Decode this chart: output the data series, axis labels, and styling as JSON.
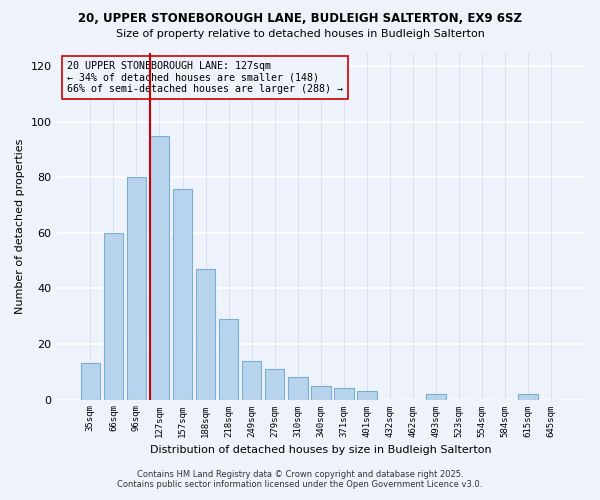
{
  "title1": "20, UPPER STONEBOROUGH LANE, BUDLEIGH SALTERTON, EX9 6SZ",
  "title2": "Size of property relative to detached houses in Budleigh Salterton",
  "xlabel": "Distribution of detached houses by size in Budleigh Salterton",
  "ylabel": "Number of detached properties",
  "bar_labels": [
    "35sqm",
    "66sqm",
    "96sqm",
    "127sqm",
    "157sqm",
    "188sqm",
    "218sqm",
    "249sqm",
    "279sqm",
    "310sqm",
    "340sqm",
    "371sqm",
    "401sqm",
    "432sqm",
    "462sqm",
    "493sqm",
    "523sqm",
    "554sqm",
    "584sqm",
    "615sqm",
    "645sqm"
  ],
  "bar_values": [
    13,
    60,
    80,
    95,
    76,
    47,
    29,
    14,
    11,
    8,
    5,
    4,
    3,
    0,
    0,
    2,
    0,
    0,
    0,
    2,
    0
  ],
  "bar_color": "#b8d4ed",
  "bar_edge_color": "#7aafd4",
  "vline_x": 3,
  "vline_color": "#cc0000",
  "ylim": [
    0,
    125
  ],
  "yticks": [
    0,
    20,
    40,
    60,
    80,
    100,
    120
  ],
  "annotation_text": "20 UPPER STONEBOROUGH LANE: 127sqm\n← 34% of detached houses are smaller (148)\n66% of semi-detached houses are larger (288) →",
  "footer1": "Contains HM Land Registry data © Crown copyright and database right 2025.",
  "footer2": "Contains public sector information licensed under the Open Government Licence v3.0.",
  "bg_color": "#eef2fb"
}
